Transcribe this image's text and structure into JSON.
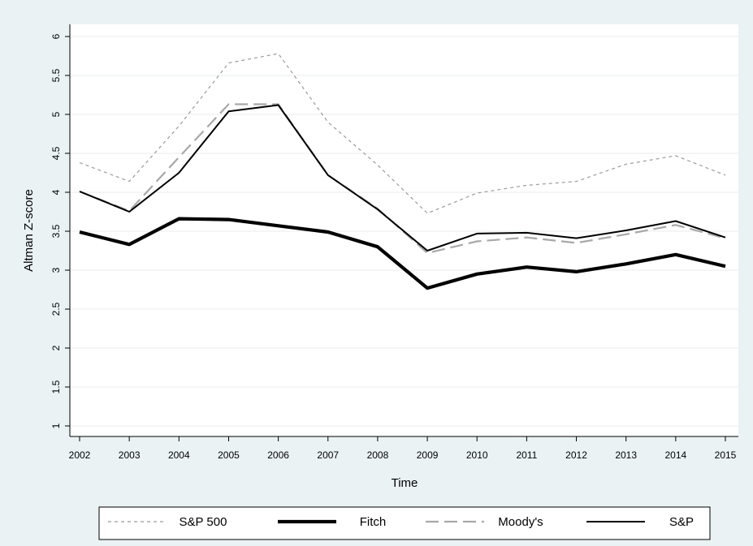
{
  "chart_data": {
    "type": "line",
    "title": "",
    "xlabel": "Time",
    "ylabel": "Altman Z-score",
    "x": [
      "2002",
      "2003",
      "2004",
      "2005",
      "2006",
      "2007",
      "2008",
      "2009",
      "2010",
      "2011",
      "2012",
      "2013",
      "2014",
      "2015"
    ],
    "ylim": [
      1,
      6
    ],
    "y_ticks": [
      "1",
      "1.5",
      "2",
      "2.5",
      "3",
      "3.5",
      "4",
      "4.5",
      "5",
      "5.5",
      "6"
    ],
    "grid": true,
    "legend_position": "bottom",
    "series": [
      {
        "name": "S&P 500",
        "style": "dotted-thin",
        "color": "#9a9a9a",
        "values": [
          4.38,
          4.14,
          4.85,
          5.66,
          5.78,
          4.9,
          4.35,
          3.73,
          3.99,
          4.09,
          4.14,
          4.36,
          4.47,
          4.22
        ]
      },
      {
        "name": "Fitch",
        "style": "solid-thick",
        "color": "#000000",
        "values": [
          3.49,
          3.33,
          3.66,
          3.65,
          3.57,
          3.49,
          3.3,
          2.77,
          2.95,
          3.04,
          2.98,
          3.08,
          3.2,
          3.05
        ]
      },
      {
        "name": "Moody's",
        "style": "dashed",
        "color": "#a8a8a8",
        "values": [
          4.01,
          3.76,
          4.45,
          5.13,
          5.13,
          4.22,
          3.79,
          3.22,
          3.37,
          3.42,
          3.35,
          3.46,
          3.58,
          3.41
        ]
      },
      {
        "name": "S&P",
        "style": "solid",
        "color": "#000000",
        "values": [
          4.01,
          3.75,
          4.25,
          5.04,
          5.12,
          4.22,
          3.78,
          3.25,
          3.47,
          3.48,
          3.41,
          3.51,
          3.63,
          3.42
        ]
      }
    ]
  }
}
